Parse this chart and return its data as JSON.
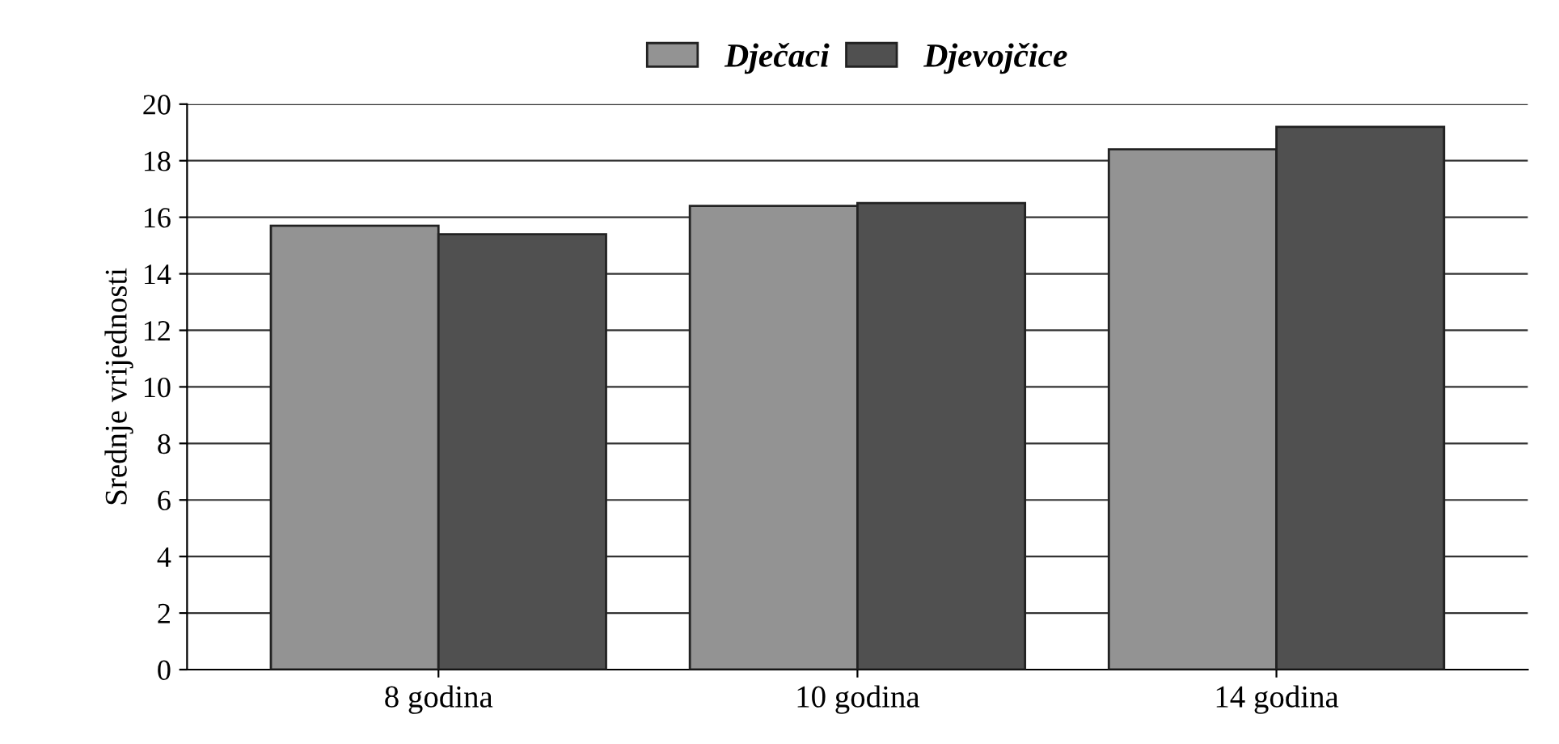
{
  "chart_data": {
    "type": "bar",
    "ylabel": "Srednje vrijednosti",
    "categories": [
      "8 godina",
      "10 godina",
      "14 godina"
    ],
    "series": [
      {
        "name": "Dječaci",
        "color": "#939393",
        "values": [
          15.7,
          16.4,
          18.4
        ]
      },
      {
        "name": "Djevojčice",
        "color": "#505050",
        "values": [
          15.4,
          16.5,
          19.2
        ]
      }
    ],
    "ylim": [
      0,
      20
    ],
    "yticks": [
      0,
      2,
      4,
      6,
      8,
      10,
      12,
      14,
      16,
      18,
      20
    ],
    "grid": "y",
    "legend": "top"
  }
}
